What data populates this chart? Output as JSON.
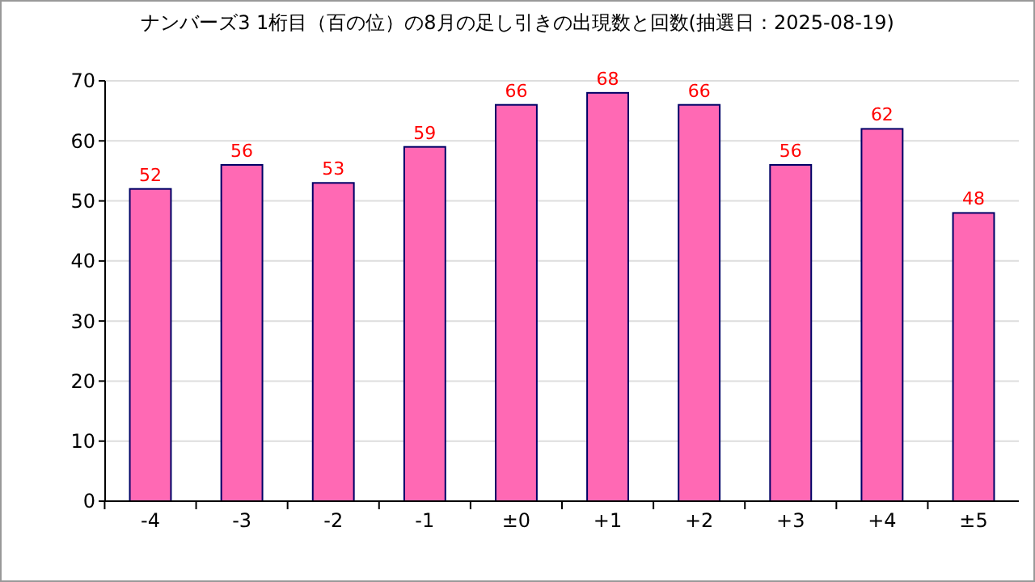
{
  "chart_data": {
    "type": "bar",
    "title": "ナンバーズ3 1桁目（百の位）の8月の足し引きの出現数と回数(抽選日：2025-08-19)",
    "categories": [
      "-4",
      "-3",
      "-2",
      "-1",
      "±0",
      "+1",
      "+2",
      "+3",
      "+4",
      "±5"
    ],
    "values": [
      52,
      56,
      53,
      59,
      66,
      68,
      66,
      56,
      62,
      48
    ],
    "color": "#ff69b4",
    "ylim": [
      0,
      70
    ],
    "yticks": [
      0,
      10,
      20,
      30,
      40,
      50,
      60,
      70
    ],
    "grid": "y",
    "data_labels": true
  }
}
